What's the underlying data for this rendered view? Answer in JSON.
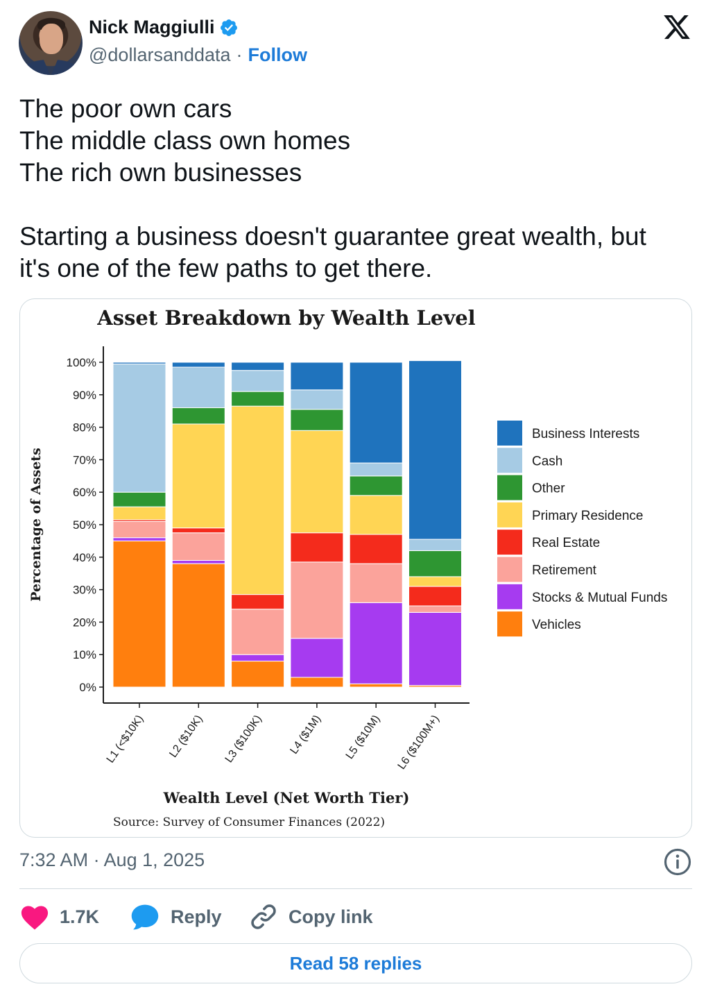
{
  "author": {
    "name": "Nick Maggiulli",
    "handle": "@dollarsanddata",
    "separator": "·",
    "follow_label": "Follow"
  },
  "tweet": {
    "lines": [
      "The poor own cars",
      "The middle class own homes",
      "The rich own businesses",
      "",
      "Starting a business doesn't guarantee great wealth, but",
      "it's one of the few paths to get there."
    ]
  },
  "timestamp": "7:32 AM · Aug 1, 2025",
  "actions": {
    "like_count": "1.7K",
    "reply_label": "Reply",
    "copy_label": "Copy link"
  },
  "read_replies_label": "Read 58 replies",
  "colors": {
    "link": "#1d7bd8",
    "like": "#f91880",
    "reply_bubble": "#1d9bf0",
    "verified": "#1d9bf0"
  },
  "icons": [
    "verified-badge-icon",
    "x-logo-icon",
    "info-icon",
    "heart-icon",
    "reply-bubble-icon",
    "link-icon"
  ],
  "chart_data": {
    "type": "bar",
    "stacked": true,
    "title": "Asset Breakdown by Wealth Level",
    "xlabel": "Wealth Level (Net Worth Tier)",
    "ylabel": "Percentage of Assets",
    "source": "Source: Survey of Consumer Finances (2022)",
    "ylim": [
      0,
      100
    ],
    "yticks": [
      "0%",
      "10%",
      "20%",
      "30%",
      "40%",
      "50%",
      "60%",
      "70%",
      "80%",
      "90%",
      "100%"
    ],
    "legend_position": "right",
    "categories": [
      "L1 (<$10K)",
      "L2 ($10K)",
      "L3 ($100K)",
      "L4 ($1M)",
      "L5 ($10M)",
      "L6 ($100M+)"
    ],
    "series": [
      {
        "name": "Vehicles",
        "color": "#ff7f0e",
        "values": [
          45,
          38,
          8,
          3,
          1,
          0.5
        ]
      },
      {
        "name": "Stocks & Mutual Funds",
        "color": "#a63bf0",
        "values": [
          1,
          1,
          2,
          12,
          25,
          22.5
        ]
      },
      {
        "name": "Retirement",
        "color": "#fba39b",
        "values": [
          5,
          8.5,
          14,
          23.5,
          12,
          2
        ]
      },
      {
        "name": "Real Estate",
        "color": "#f42b1c",
        "values": [
          0.5,
          1.5,
          4.5,
          9,
          9,
          6
        ]
      },
      {
        "name": "Primary Residence",
        "color": "#ffd554",
        "values": [
          4,
          32,
          58,
          31.5,
          12,
          3
        ]
      },
      {
        "name": "Other",
        "color": "#2e9632",
        "values": [
          4.5,
          5,
          4.5,
          6.5,
          6,
          8
        ]
      },
      {
        "name": "Cash",
        "color": "#a6cbe4",
        "values": [
          39.5,
          12.5,
          6.5,
          6,
          4,
          3.5
        ]
      },
      {
        "name": "Business Interests",
        "color": "#1f73bd",
        "values": [
          0.5,
          1.5,
          2.5,
          8.5,
          31,
          55
        ]
      }
    ],
    "legend_order": [
      "Business Interests",
      "Cash",
      "Other",
      "Primary Residence",
      "Real Estate",
      "Retirement",
      "Stocks & Mutual Funds",
      "Vehicles"
    ]
  }
}
